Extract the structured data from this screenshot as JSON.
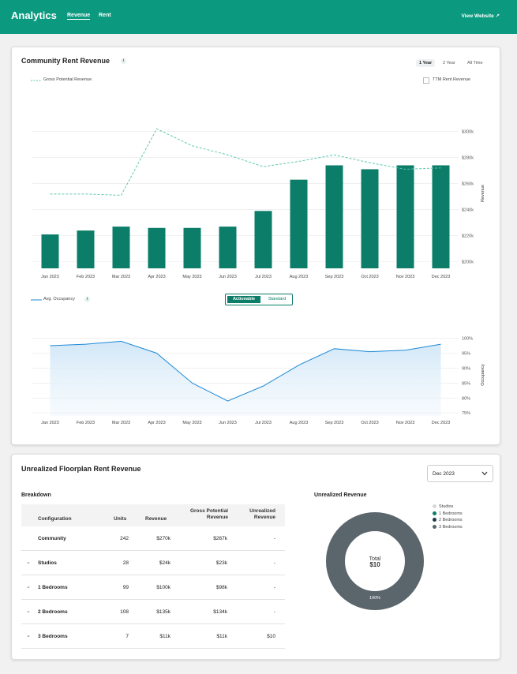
{
  "header": {
    "title": "Analytics",
    "tabs": [
      {
        "label": "Revenue",
        "active": true
      },
      {
        "label": "Rent",
        "active": false
      }
    ],
    "view_website": "View Website ↗"
  },
  "rent_card": {
    "title": "Community Rent Revenue",
    "info": "i",
    "ranges": [
      {
        "label": "1 Year",
        "active": true
      },
      {
        "label": "2 Year",
        "active": false
      },
      {
        "label": "All Time",
        "active": false
      }
    ],
    "legend_gpr": "Gross Potential Revenue",
    "ttm_label": "TTM Rent Revenue",
    "occupancy_legend": "Avg. Occupancy",
    "toggle": {
      "actionable": "Actionable",
      "standard": "Standard"
    },
    "accent": "#0b7d68",
    "dashed_color": "#5cc8b0",
    "occupancy_color": "#1d8ad6"
  },
  "chart_data": [
    {
      "type": "bar",
      "categories": [
        "Jan 2023",
        "Feb 2023",
        "Mar 2023",
        "Apr 2023",
        "May 2023",
        "Jun 2023",
        "Jul 2023",
        "Aug 2023",
        "Sep 2023",
        "Oct 2023",
        "Nov 2023",
        "Dec 2023"
      ],
      "series": [
        {
          "name": "TTM Rent Revenue",
          "values": [
            221,
            224,
            227,
            226,
            226,
            227,
            239,
            263,
            274,
            271,
            274,
            274
          ]
        },
        {
          "name": "Gross Potential Revenue",
          "values": [
            252,
            252,
            251,
            302,
            289,
            282,
            273,
            277,
            282,
            276,
            271,
            272
          ]
        }
      ],
      "ylabel": "Revenue",
      "yticks": [
        200,
        220,
        240,
        260,
        280,
        300
      ],
      "ytick_labels": [
        "$200k",
        "$220k",
        "$240k",
        "$260k",
        "$280k",
        "$300k"
      ],
      "ylim": [
        195,
        310
      ]
    },
    {
      "type": "area",
      "categories": [
        "Jan 2023",
        "Feb 2023",
        "Mar 2023",
        "Apr 2023",
        "May 2023",
        "Jun 2023",
        "Jul 2023",
        "Aug 2023",
        "Sep 2023",
        "Oct 2023",
        "Nov 2023",
        "Dec 2023"
      ],
      "series": [
        {
          "name": "Avg. Occupancy",
          "values": [
            97.5,
            98,
            99,
            95,
            85,
            79,
            84,
            91,
            96.5,
            95.5,
            96,
            98
          ]
        }
      ],
      "ylabel": "Occupancy",
      "yticks": [
        75,
        80,
        85,
        90,
        95,
        100
      ],
      "ytick_labels": [
        "75%",
        "80%",
        "85%",
        "90%",
        "95%",
        "100%"
      ],
      "ylim": [
        74,
        102
      ]
    },
    {
      "type": "pie",
      "title": "Unrealized Revenue",
      "center_label": "Total",
      "center_value": "$10",
      "slices": [
        {
          "name": "Studios",
          "value": 0,
          "color": "#d5d9dc"
        },
        {
          "name": "1 Bedrooms",
          "value": 0,
          "color": "#0b7d68"
        },
        {
          "name": "2 Bedrooms",
          "value": 0,
          "color": "#1e3d4a"
        },
        {
          "name": "3 Bedrooms",
          "value": 100,
          "color": "#5b666c"
        }
      ],
      "slice_label": "100%"
    }
  ],
  "floorplan_card": {
    "title": "Unrealized Floorplan Rent Revenue",
    "period": "Dec 2023",
    "breakdown_label": "Breakdown",
    "columns": [
      "Configuration",
      "Units",
      "Revenue",
      "Gross Potential Revenue",
      "Unrealized Revenue"
    ],
    "rows": [
      {
        "name": "Community",
        "units": "242",
        "revenue": "$270k",
        "gpr": "$267k",
        "unrealized": "-",
        "expandable": false
      },
      {
        "name": "Studios",
        "units": "28",
        "revenue": "$24k",
        "gpr": "$23k",
        "unrealized": "-",
        "expandable": true
      },
      {
        "name": "1 Bedrooms",
        "units": "99",
        "revenue": "$100k",
        "gpr": "$98k",
        "unrealized": "-",
        "expandable": true
      },
      {
        "name": "2 Bedrooms",
        "units": "108",
        "revenue": "$135k",
        "gpr": "$134k",
        "unrealized": "-",
        "expandable": true
      },
      {
        "name": "3 Bedrooms",
        "units": "7",
        "revenue": "$11k",
        "gpr": "$11k",
        "unrealized": "$10",
        "expandable": true
      }
    ]
  }
}
